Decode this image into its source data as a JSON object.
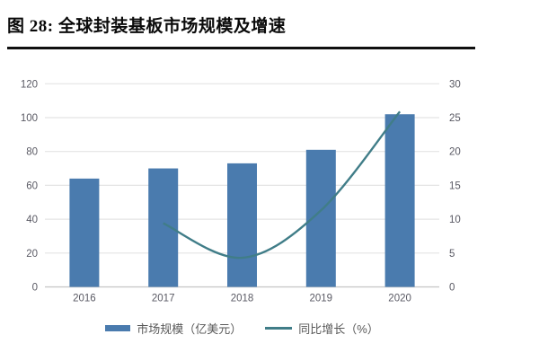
{
  "figure": {
    "title": "图 28: 全球封装基板市场规模及增速"
  },
  "chart_data": {
    "type": "bar",
    "subtype": "combo-bar-line",
    "title": "全球封装基板市场规模及增速",
    "categories": [
      "2016",
      "2017",
      "2018",
      "2019",
      "2020"
    ],
    "series": [
      {
        "name": "市场规模（亿美元）",
        "type": "bar",
        "axis": "left",
        "color": "#4a7bae",
        "values": [
          64,
          70,
          73,
          81,
          102
        ]
      },
      {
        "name": "同比增长（%）",
        "type": "line",
        "axis": "right",
        "color": "#407d88",
        "smooth": true,
        "values": [
          null,
          9.4,
          4.3,
          11.3,
          25.9
        ]
      }
    ],
    "left_axis": {
      "min": 0,
      "max": 120,
      "step": 20
    },
    "right_axis": {
      "min": 0,
      "max": 30,
      "step": 5
    },
    "grid": true,
    "legend_position": "bottom"
  },
  "colors": {
    "bar": "#4a7bae",
    "line": "#407d88",
    "gridline": "#e4e4e4",
    "axis_line": "#c4c4c4",
    "tick_label": "#5a5a64",
    "legend_text": "#595959",
    "title_text": "#0a0a0a"
  }
}
